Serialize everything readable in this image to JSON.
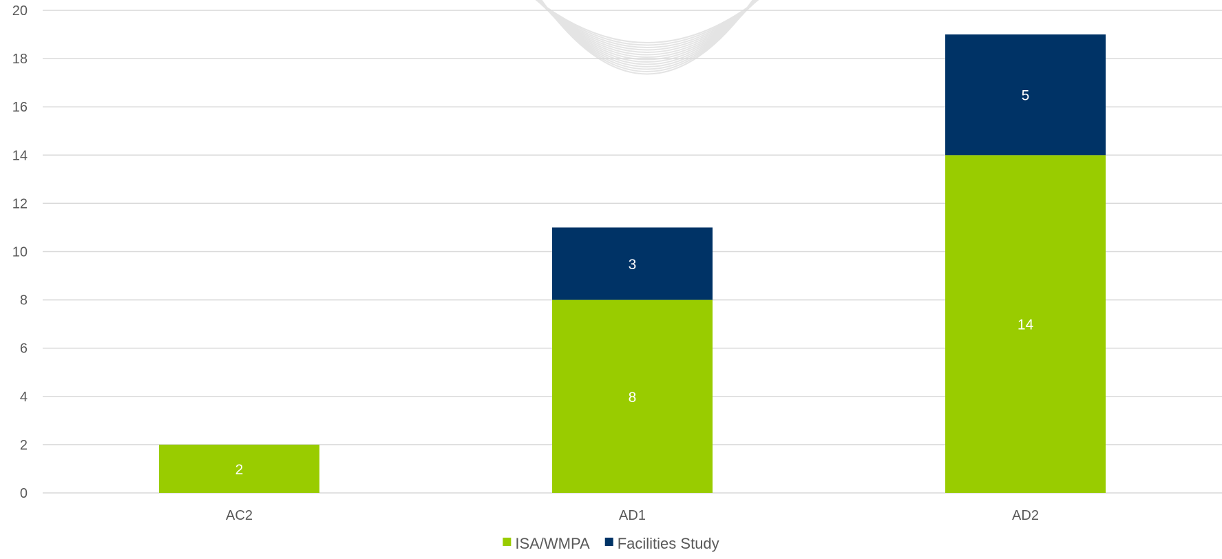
{
  "chart_data": {
    "type": "bar",
    "stacked": true,
    "categories": [
      "AC2",
      "AD1",
      "AD2"
    ],
    "series": [
      {
        "name": "ISA/WMPA",
        "color": "#99CC00",
        "values": [
          2,
          8,
          14
        ]
      },
      {
        "name": "Facilities Study",
        "color": "#003366",
        "values": [
          0,
          3,
          5
        ]
      }
    ],
    "ylim": [
      0,
      20
    ],
    "y_ticks": [
      0,
      2,
      4,
      6,
      8,
      10,
      12,
      14,
      16,
      18,
      20
    ],
    "grid": true,
    "legend": "bottom-center",
    "data_labels": true,
    "decoration": "faint-watermark-arcs"
  }
}
